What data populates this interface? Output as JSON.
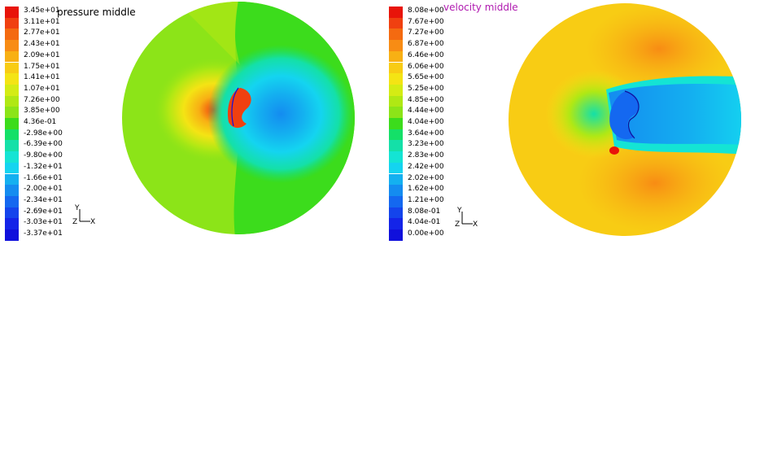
{
  "pressure": {
    "title": "pressure middle",
    "title_color": "#000000",
    "legend": [
      {
        "label": "3.45e+01",
        "color": "#e8140a"
      },
      {
        "label": "3.11e+01",
        "color": "#f04010"
      },
      {
        "label": "2.77e+01",
        "color": "#f46a10"
      },
      {
        "label": "2.43e+01",
        "color": "#f88c14"
      },
      {
        "label": "2.09e+01",
        "color": "#f8b014"
      },
      {
        "label": "1.75e+01",
        "color": "#f8cc14"
      },
      {
        "label": "1.41e+01",
        "color": "#f4e414"
      },
      {
        "label": "1.07e+01",
        "color": "#d4ec14"
      },
      {
        "label": "7.26e+00",
        "color": "#b0e814"
      },
      {
        "label": "3.85e+00",
        "color": "#8ce418"
      },
      {
        "label": "4.36e-01",
        "color": "#3cdc1c"
      },
      {
        "label": "-2.98e+00",
        "color": "#14e068"
      },
      {
        "label": "-6.39e+00",
        "color": "#14e0a8"
      },
      {
        "label": "-9.80e+00",
        "color": "#14e4d4"
      },
      {
        "label": "-1.32e+01",
        "color": "#14d4f0"
      },
      {
        "label": "-1.66e+01",
        "color": "#14b0f0"
      },
      {
        "label": "-2.00e+01",
        "color": "#148cf0"
      },
      {
        "label": "-2.34e+01",
        "color": "#1468f0"
      },
      {
        "label": "-2.69e+01",
        "color": "#1444ec"
      },
      {
        "label": "-3.03e+01",
        "color": "#1424e8"
      },
      {
        "label": "-3.37e+01",
        "color": "#1010dc"
      }
    ],
    "axes": {
      "y": "Y",
      "z": "Z",
      "x": "X"
    }
  },
  "velocity": {
    "title": "velocity middle",
    "title_color": "#b01ab0",
    "legend": [
      {
        "label": "8.08e+00",
        "color": "#e8140a"
      },
      {
        "label": "7.67e+00",
        "color": "#f04010"
      },
      {
        "label": "7.27e+00",
        "color": "#f46a10"
      },
      {
        "label": "6.87e+00",
        "color": "#f88c14"
      },
      {
        "label": "6.46e+00",
        "color": "#f8b014"
      },
      {
        "label": "6.06e+00",
        "color": "#f8cc14"
      },
      {
        "label": "5.65e+00",
        "color": "#f4e414"
      },
      {
        "label": "5.25e+00",
        "color": "#d4ec14"
      },
      {
        "label": "4.85e+00",
        "color": "#b0e814"
      },
      {
        "label": "4.44e+00",
        "color": "#8ce418"
      },
      {
        "label": "4.04e+00",
        "color": "#3cdc1c"
      },
      {
        "label": "3.64e+00",
        "color": "#14e068"
      },
      {
        "label": "3.23e+00",
        "color": "#14e0a8"
      },
      {
        "label": "2.83e+00",
        "color": "#14e4d4"
      },
      {
        "label": "2.42e+00",
        "color": "#14d4f0"
      },
      {
        "label": "2.02e+00",
        "color": "#14b0f0"
      },
      {
        "label": "1.62e+00",
        "color": "#148cf0"
      },
      {
        "label": "1.21e+00",
        "color": "#1468f0"
      },
      {
        "label": "8.08e-01",
        "color": "#1444ec"
      },
      {
        "label": "4.04e-01",
        "color": "#1424e8"
      },
      {
        "label": "0.00e+00",
        "color": "#1010dc"
      }
    ],
    "axes": {
      "y": "Y",
      "z": "Z",
      "x": "X"
    }
  }
}
